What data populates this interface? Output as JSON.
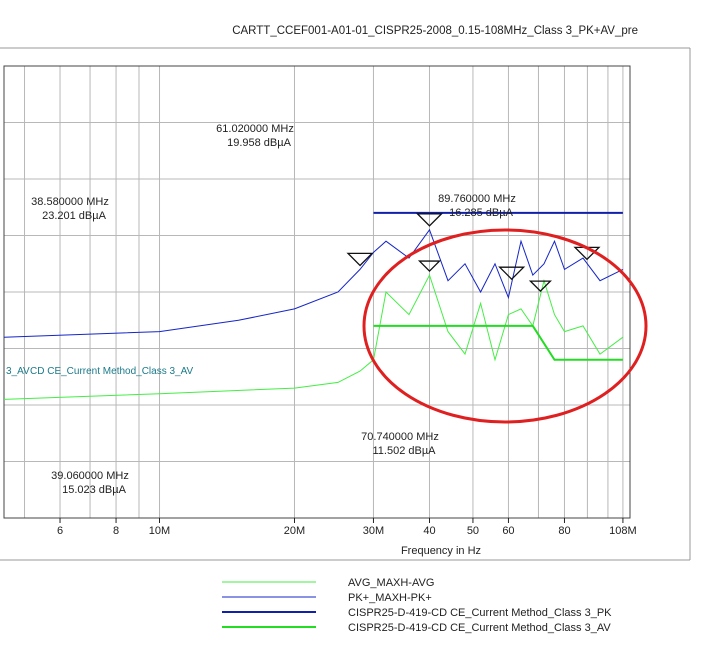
{
  "chart_data": {
    "type": "line",
    "title": "CARTT_CCEF001-A01-01_CISPR25-2008_0.15-108MHz_Class 3_PK+AV_pre",
    "xlabel": "Frequency in Hz",
    "x_scale": "log",
    "xlim_mhz": [
      4.5,
      112
    ],
    "x_ticks": [
      {
        "label": "6",
        "value_mhz": 6
      },
      {
        "label": "8",
        "value_mhz": 8
      },
      {
        "label": "10M",
        "value_mhz": 10
      },
      {
        "label": "20M",
        "value_mhz": 20
      },
      {
        "label": "30M",
        "value_mhz": 30
      },
      {
        "label": "40",
        "value_mhz": 40
      },
      {
        "label": "50",
        "value_mhz": 50
      },
      {
        "label": "60",
        "value_mhz": 60
      },
      {
        "label": "80",
        "value_mhz": 80
      },
      {
        "label": "108M",
        "value_mhz": 108
      }
    ],
    "grid": true,
    "series": [
      {
        "name": "AVG_MAXH-AVG",
        "color": "#44ee44",
        "width": 1,
        "x_mhz": [
          4.5,
          10,
          20,
          25,
          28,
          30,
          32,
          36,
          40,
          44,
          48,
          52,
          56,
          60,
          64,
          68,
          72,
          76,
          80,
          88,
          96,
          108
        ],
        "y": [
          -9,
          -8,
          -7,
          -6,
          -4,
          -2,
          10,
          6,
          13,
          3,
          -1,
          8,
          -2,
          6,
          7,
          4,
          12,
          6,
          3,
          4,
          -1,
          2
        ]
      },
      {
        "name": "PK+_MAXH-PK+",
        "color": "#1525c8",
        "width": 1,
        "x_mhz": [
          4.5,
          10,
          15,
          20,
          25,
          28,
          30,
          32,
          36,
          40,
          44,
          48,
          52,
          56,
          60,
          64,
          68,
          72,
          76,
          80,
          88,
          96,
          108
        ],
        "y": [
          2,
          3,
          5,
          7,
          10,
          14,
          17,
          19,
          16,
          21,
          12,
          15,
          10,
          15,
          9,
          19,
          13,
          15,
          19,
          14,
          16,
          12,
          14
        ]
      },
      {
        "name": "CISPR25-D-419-CD CE_Current Method_Class 3_PK",
        "color": "#1020aa",
        "width": 2,
        "x_mhz": [
          30,
          108
        ],
        "y": [
          24,
          24
        ]
      },
      {
        "name": "CISPR25-D-419-CD CE_Current Method_Class 3_AV",
        "color": "#22dd22",
        "width": 2,
        "x_mhz": [
          30,
          68,
          76,
          108
        ],
        "y": [
          4,
          4,
          -2,
          -2
        ]
      }
    ],
    "overlay_labels": [
      "3_AV",
      "CD CE_Current Method_Class 3_AV"
    ],
    "annotations": [
      {
        "freq": "61.020000 MHz",
        "level": "19.958 dBµA"
      },
      {
        "freq": "38.580000 MHz",
        "level": "23.201 dBµA"
      },
      {
        "freq": "89.760000 MHz",
        "level": "16.285 dBµA"
      },
      {
        "freq": "70.740000 MHz",
        "level": "11.502 dBµA"
      },
      {
        "freq": "39.060000 MHz",
        "level": "15.023 dBµA"
      }
    ],
    "peak_markers_mhz": [
      28,
      40,
      61,
      89.8
    ],
    "avg_markers_mhz": [
      40,
      70.7
    ],
    "legend_position": "bottom"
  },
  "colors": {
    "highlight_ellipse": "#e02020",
    "grid": "#b8b8b8"
  }
}
